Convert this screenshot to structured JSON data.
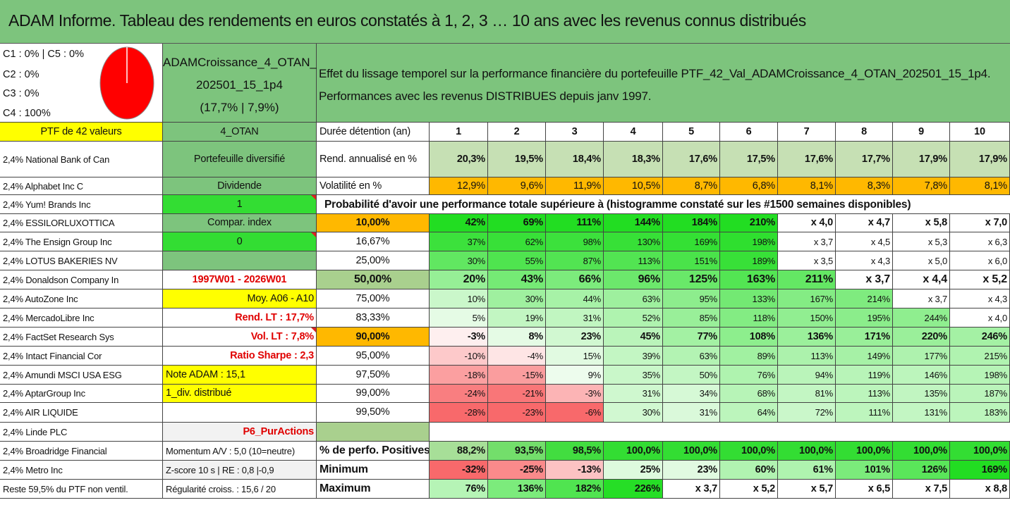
{
  "title": "ADAM Informe. Tableau des rendements en euros constatés à 1, 2, 3 … 10 ans avec les revenus connus distribués",
  "allocation": {
    "lines": [
      "C1 : 0% | C5 : 0%",
      "C2 : 0%",
      "C3 : 0%",
      "C4 : 100%"
    ],
    "pie_color": "#ff0000"
  },
  "fund": {
    "name_line1": "ADAMCroissance_4_OTAN_",
    "name_line2": "202501_15_1p4",
    "stats": "(17,7% | 7,9%)"
  },
  "description": {
    "line1": "Effet du lissage temporel sur la performance financière du portefeuille PTF_42_Val_ADAMCroissance_4_OTAN_202501_15_1p4.",
    "line2": "Performances avec les revenus DISTRIBUES depuis janv 1997."
  },
  "header": {
    "ptf": "PTF de 42 valeurs",
    "code": "4_OTAN",
    "duration_label": "Durée détention (an)",
    "years": [
      "1",
      "2",
      "3",
      "4",
      "5",
      "6",
      "7",
      "8",
      "9",
      "10"
    ]
  },
  "holdings": [
    "2,4% National Bank of Can",
    "2,4% Alphabet Inc C",
    "2,4% Yum! Brands Inc",
    "2,4% ESSILORLUXOTTICA",
    "2,4% The Ensign Group Inc",
    "2,4% LOTUS BAKERIES NV",
    "2,4% Donaldson Company In",
    "2,4% AutoZone Inc",
    "2,4% MercadoLibre Inc",
    "2,4% FactSet Research Sys",
    "2,4% Intact Financial Cor",
    "2,4% Amundi MSCI USA ESG",
    "2,4% AptarGroup Inc",
    "2,4% AIR LIQUIDE",
    "2,4% Linde PLC",
    "2,4% Broadridge Financial",
    "2,4% Metro Inc",
    "Reste 59,5% du PTF non ventil."
  ],
  "info_column": [
    "Portefeuille diversifié",
    "Dividende",
    "1",
    "Compar. index",
    "0",
    "",
    "1997W01 - 2026W01",
    "Moy. A06 - A10",
    "Rend. LT : 17,7%",
    "Vol. LT : 7,8%",
    "Ratio Sharpe : 2,3",
    "Note ADAM : 15,1",
    "1_div. distribué",
    "",
    "P6_PurActions",
    "Momentum A/V : 5,0 (10=neutre)",
    "Z-score 10 s | RE : 0,8 |-0,9",
    "Régularité croiss. : 15,6 / 20"
  ],
  "rend": {
    "label": "Rend. annualisé en %",
    "values": [
      "20,3%",
      "19,5%",
      "18,4%",
      "18,3%",
      "17,6%",
      "17,5%",
      "17,6%",
      "17,7%",
      "17,9%",
      "17,9%"
    ]
  },
  "vol": {
    "label": "Volatilité en %",
    "values": [
      "12,9%",
      "9,6%",
      "11,9%",
      "10,5%",
      "8,7%",
      "6,8%",
      "8,1%",
      "8,3%",
      "7,8%",
      "8,1%"
    ]
  },
  "probability_title": "Probabilité d'avoir une performance totale supérieure à (histogramme constaté sur les #1500 semaines disponibles)",
  "prob_rows": [
    {
      "p": "10,00%",
      "v": [
        "42%",
        "69%",
        "111%",
        "144%",
        "184%",
        "210%",
        "x 4,0",
        "x 4,7",
        "x 5,8",
        "x 7,0"
      ]
    },
    {
      "p": "16,67%",
      "v": [
        "37%",
        "62%",
        "98%",
        "130%",
        "169%",
        "198%",
        "x 3,7",
        "x 4,5",
        "x 5,3",
        "x 6,3"
      ]
    },
    {
      "p": "25,00%",
      "v": [
        "30%",
        "55%",
        "87%",
        "113%",
        "151%",
        "189%",
        "x 3,5",
        "x 4,3",
        "x 5,0",
        "x 6,0"
      ]
    },
    {
      "p": "50,00%",
      "v": [
        "20%",
        "43%",
        "66%",
        "96%",
        "125%",
        "163%",
        "211%",
        "x 3,7",
        "x 4,4",
        "x 5,2"
      ]
    },
    {
      "p": "75,00%",
      "v": [
        "10%",
        "30%",
        "44%",
        "63%",
        "95%",
        "133%",
        "167%",
        "214%",
        "x 3,7",
        "x 4,3"
      ]
    },
    {
      "p": "83,33%",
      "v": [
        "5%",
        "19%",
        "31%",
        "52%",
        "85%",
        "118%",
        "150%",
        "195%",
        "244%",
        "x 4,0"
      ]
    },
    {
      "p": "90,00%",
      "v": [
        "-3%",
        "8%",
        "23%",
        "45%",
        "77%",
        "108%",
        "136%",
        "171%",
        "220%",
        "246%"
      ]
    },
    {
      "p": "95,00%",
      "v": [
        "-10%",
        "-4%",
        "15%",
        "39%",
        "63%",
        "89%",
        "113%",
        "149%",
        "177%",
        "215%"
      ]
    },
    {
      "p": "97,50%",
      "v": [
        "-18%",
        "-15%",
        "9%",
        "35%",
        "50%",
        "76%",
        "94%",
        "119%",
        "146%",
        "198%"
      ]
    },
    {
      "p": "99,00%",
      "v": [
        "-24%",
        "-21%",
        "-3%",
        "31%",
        "34%",
        "68%",
        "81%",
        "113%",
        "135%",
        "187%"
      ]
    },
    {
      "p": "99,50%",
      "v": [
        "-28%",
        "-23%",
        "-6%",
        "30%",
        "31%",
        "64%",
        "72%",
        "111%",
        "131%",
        "183%"
      ]
    }
  ],
  "positives": {
    "label": "% de perfo. Positives",
    "values": [
      "88,2%",
      "93,5%",
      "98,5%",
      "100,0%",
      "100,0%",
      "100,0%",
      "100,0%",
      "100,0%",
      "100,0%",
      "100,0%"
    ]
  },
  "minimum": {
    "label": "Minimum",
    "values": [
      "-32%",
      "-25%",
      "-13%",
      "25%",
      "23%",
      "60%",
      "61%",
      "101%",
      "126%",
      "169%"
    ]
  },
  "maximum": {
    "label": "Maximum",
    "values": [
      "76%",
      "136%",
      "182%",
      "226%",
      "x 3,7",
      "x 5,2",
      "x 5,7",
      "x 6,5",
      "x 7,5",
      "x 8,8"
    ]
  },
  "colors": {
    "header_green": "#7dc47d",
    "yellow": "#ffff00",
    "bright_green": "#33dd33",
    "orange": "#ffb800",
    "pale_green": "#c6e0b4",
    "mid_green": "#a9d08e",
    "grey": "#f2f2f2",
    "red_text": "#e00000"
  }
}
